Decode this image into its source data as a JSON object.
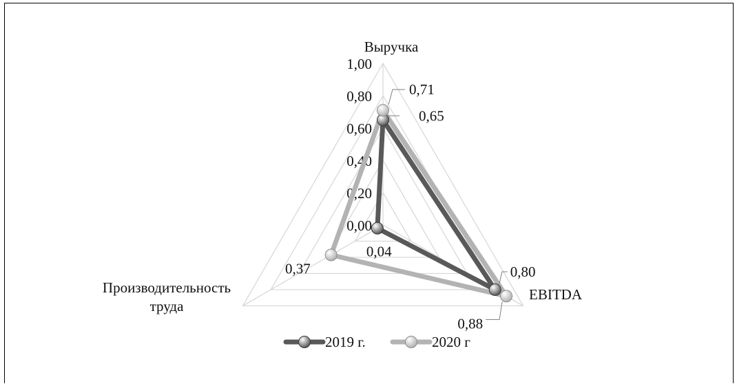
{
  "chart_data": {
    "type": "radar",
    "axes": [
      "Выручка",
      "EBITDA",
      "Производительность труда"
    ],
    "axis_label_lines": [
      [
        "Выручка"
      ],
      [
        "EBITDA"
      ],
      [
        "Производительность",
        "труда"
      ]
    ],
    "rmin": 0,
    "rmax": 1,
    "ticks": [
      0,
      0.2,
      0.4,
      0.6,
      0.8,
      1.0
    ],
    "tick_labels": [
      "0,00",
      "0,20",
      "0,40",
      "0,60",
      "0,80",
      "1,00"
    ],
    "grid": true,
    "legend_position": "bottom",
    "series": [
      {
        "name": "2019 г.",
        "values": [
          0.65,
          0.8,
          0.04
        ],
        "value_labels": [
          "0,65",
          "0,80",
          "0,04"
        ],
        "color": "#595959"
      },
      {
        "name": "2020 г",
        "values": [
          0.71,
          0.88,
          0.37
        ],
        "value_labels": [
          "0,71",
          "0,88",
          "0,37"
        ],
        "color": "#b3b3b3"
      }
    ]
  }
}
